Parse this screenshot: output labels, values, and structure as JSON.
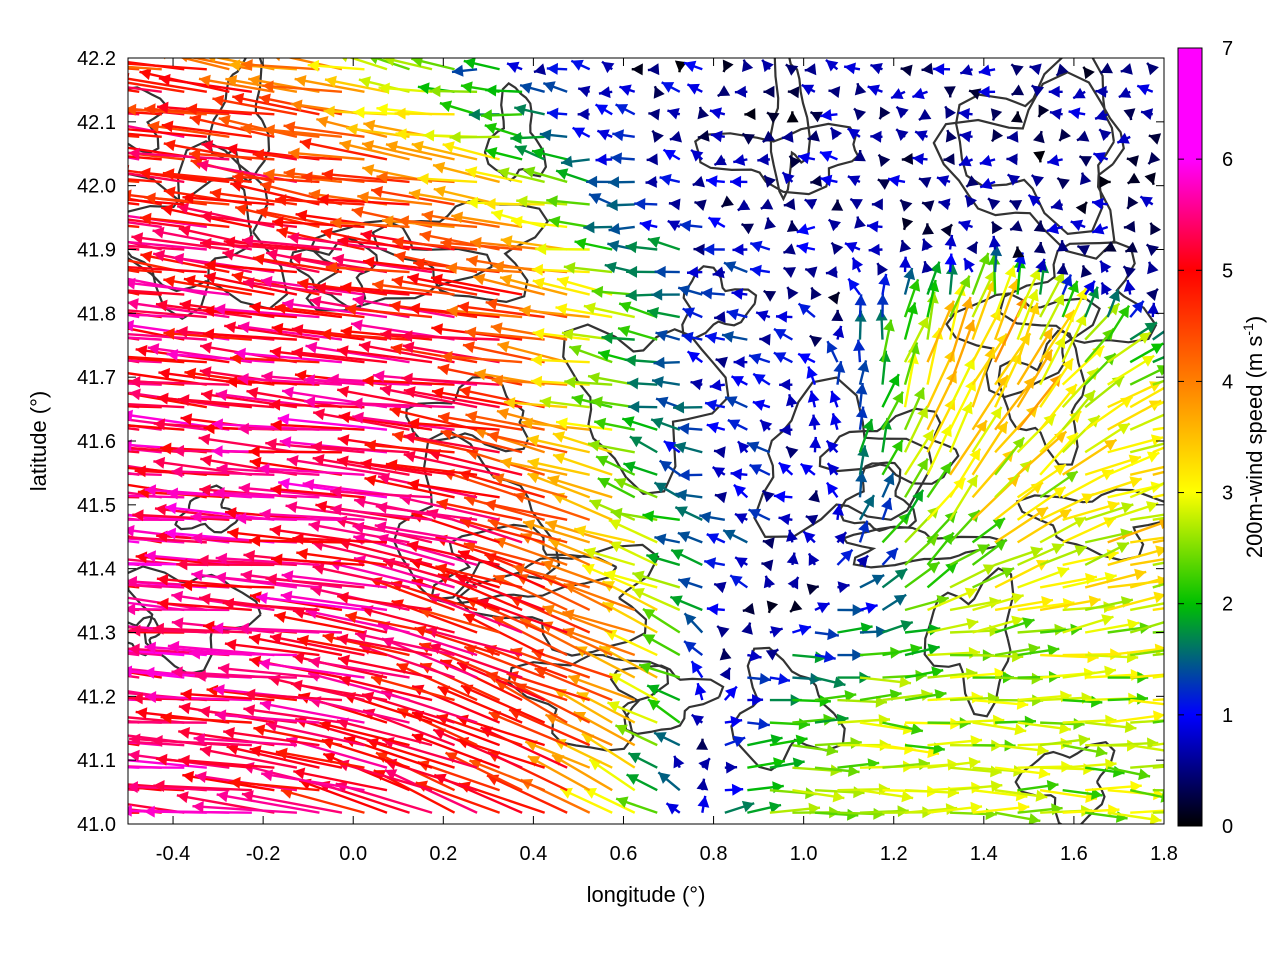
{
  "chart_data": {
    "type": "vector-field",
    "xlabel": "longitude (°)",
    "ylabel": "latitude (°)",
    "xlim": [
      -0.5,
      1.8
    ],
    "ylim": [
      41.0,
      42.2
    ],
    "x_ticks": [
      "-0.4",
      "-0.2",
      "0.0",
      "0.2",
      "0.4",
      "0.6",
      "0.8",
      "1.0",
      "1.2",
      "1.4",
      "1.6",
      "1.8"
    ],
    "y_ticks": [
      "41.0",
      "41.1",
      "41.2",
      "41.3",
      "41.4",
      "41.5",
      "41.6",
      "41.7",
      "41.8",
      "41.9",
      "42.0",
      "42.1",
      "42.2"
    ],
    "colorbar": {
      "label": "200m-wind speed (m s",
      "label_sup": "-1",
      "label_end": ")",
      "range": [
        0,
        7
      ],
      "ticks": [
        "0",
        "1",
        "2",
        "3",
        "4",
        "5",
        "6",
        "7"
      ],
      "palette": [
        "#000000",
        "#0000ff",
        "#00c000",
        "#ffff00",
        "#ff8000",
        "#ff0000",
        "#ff00ff"
      ]
    },
    "contour_color": "#333333",
    "regions": [
      {
        "desc": "strong westward flow, north-west",
        "lon": [
          -0.5,
          0.4
        ],
        "lat": [
          41.75,
          42.05
        ],
        "u": -6.0,
        "v": 0.9
      },
      {
        "desc": "strong westward flow, west-central",
        "lon": [
          -0.5,
          0.4
        ],
        "lat": [
          41.25,
          41.75
        ],
        "u": -6.3,
        "v": 0.5
      },
      {
        "desc": "south-west deflected flow",
        "lon": [
          0.2,
          0.65
        ],
        "lat": [
          41.05,
          41.5
        ],
        "u": -5.5,
        "v": 2.5
      },
      {
        "desc": "central weak winds",
        "lon": [
          0.6,
          1.15
        ],
        "lat": [
          41.35,
          41.75
        ],
        "u": -0.8,
        "v": 0.2
      },
      {
        "desc": "northern variable weak winds",
        "lon": [
          0.4,
          1.8
        ],
        "lat": [
          41.9,
          42.2
        ],
        "u": -0.5,
        "v": 0.1
      },
      {
        "desc": "north-east northward jet",
        "lon": [
          1.2,
          1.5
        ],
        "lat": [
          41.45,
          41.75
        ],
        "u": 1.5,
        "v": 4.5
      },
      {
        "desc": "south-east eastward flow",
        "lon": [
          0.85,
          1.8
        ],
        "lat": [
          41.0,
          41.3
        ],
        "u": 3.0,
        "v": -0.1
      },
      {
        "desc": "eastern moderate flow",
        "lon": [
          1.3,
          1.8
        ],
        "lat": [
          41.3,
          41.6
        ],
        "u": 3.5,
        "v": 0.8
      }
    ]
  }
}
